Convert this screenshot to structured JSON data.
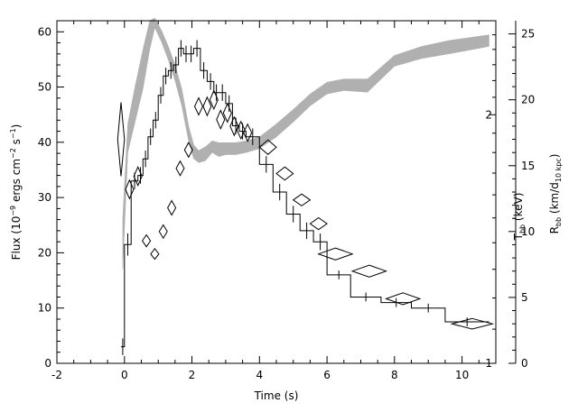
{
  "chart_data": {
    "type": "line",
    "xlabel": "Time (s)",
    "ylabel_left_prefix": "Flux (10",
    "ylabel_left_exp1": "−9",
    "ylabel_left_mid": " ergs cm",
    "ylabel_left_exp2": "−2",
    "ylabel_left_mid2": " s",
    "ylabel_left_exp3": "−1",
    "ylabel_left_suffix": ")",
    "ylabel_t_main": "T",
    "ylabel_t_sub": "bb",
    "ylabel_t_unit": " (keV)",
    "ylabel_r_main": "R",
    "ylabel_r_sub": "bb",
    "ylabel_r_unit_a": " (km/d",
    "ylabel_r_unit_sub": "10 kpc",
    "ylabel_r_unit_b": ")",
    "xlim": [
      -2,
      11
    ],
    "ylim_flux": [
      0,
      62
    ],
    "ylim_radius": [
      0,
      26
    ],
    "t_axis_log_range": [
      1,
      2.6
    ],
    "x_ticks": [
      "-2",
      "0",
      "2",
      "4",
      "6",
      "8",
      "10"
    ],
    "x_tick_values": [
      -2,
      0,
      2,
      4,
      6,
      8,
      10
    ],
    "flux_ticks": [
      "0",
      "10",
      "20",
      "30",
      "40",
      "50",
      "60"
    ],
    "flux_tick_values": [
      0,
      10,
      20,
      30,
      40,
      50,
      60
    ],
    "radius_ticks": [
      "0",
      "5",
      "10",
      "15",
      "20",
      "25"
    ],
    "radius_tick_values": [
      0,
      5,
      10,
      15,
      20,
      25
    ],
    "t_ticks": [
      "1",
      "2"
    ],
    "t_tick_values": [
      1,
      2
    ],
    "series": [
      {
        "kind": "flux_histogram",
        "x_edges": [
          -0.1,
          0.0,
          0.2,
          0.4,
          0.55,
          0.7,
          0.85,
          1.0,
          1.15,
          1.3,
          1.45,
          1.6,
          1.75,
          1.9,
          2.05,
          2.25,
          2.45,
          2.65,
          2.8,
          3.0,
          3.2,
          3.4,
          3.6,
          4.0,
          4.4,
          4.8,
          5.2,
          5.6,
          6.0,
          6.7,
          7.6,
          8.5,
          9.5,
          10.8
        ],
        "values": [
          3,
          21.5,
          33,
          34,
          37,
          41,
          44,
          48.5,
          52,
          53,
          54,
          57,
          56,
          56,
          57,
          53,
          51,
          49,
          49,
          47,
          43,
          42,
          41,
          36,
          31,
          27,
          24,
          22,
          16,
          12,
          11,
          10,
          7.5
        ],
        "errors": [
          1.5,
          2,
          1.5,
          1.5,
          1.5,
          1.5,
          1.5,
          1.5,
          1.5,
          1.5,
          1.5,
          1.5,
          1.5,
          1.5,
          1.5,
          1.5,
          1.5,
          1.5,
          1.5,
          1.5,
          1.5,
          1.5,
          1.5,
          1.5,
          1.5,
          1.5,
          1.5,
          1.5,
          0.8,
          0.8,
          0.8,
          0.8,
          0.8
        ]
      },
      {
        "kind": "temperature_band",
        "x": [
          -0.05,
          0.1,
          0.3,
          0.55,
          0.75,
          0.9,
          1.1,
          1.3,
          1.5,
          1.7,
          1.9,
          2.05,
          2.2,
          2.4,
          2.6,
          2.8,
          3.0,
          3.3,
          3.6,
          4.0,
          4.5,
          5.0,
          5.5,
          6.0,
          6.5,
          7.2,
          8.0,
          8.8,
          9.6,
          10.8
        ],
        "lo": [
          1.3,
          1.8,
          1.95,
          2.15,
          2.4,
          2.55,
          2.45,
          2.33,
          2.2,
          2.05,
          1.86,
          1.77,
          1.75,
          1.76,
          1.8,
          1.78,
          1.79,
          1.79,
          1.8,
          1.82,
          1.88,
          1.96,
          2.05,
          2.12,
          2.14,
          2.13,
          2.29,
          2.34,
          2.37,
          2.42
        ],
        "hi": [
          1.5,
          1.95,
          2.15,
          2.4,
          2.6,
          2.62,
          2.53,
          2.42,
          2.3,
          2.15,
          1.94,
          1.84,
          1.81,
          1.83,
          1.86,
          1.85,
          1.85,
          1.85,
          1.86,
          1.88,
          1.95,
          2.03,
          2.12,
          2.19,
          2.21,
          2.21,
          2.36,
          2.42,
          2.46,
          2.5
        ]
      },
      {
        "kind": "radius_diamonds",
        "x": [
          -0.1,
          0.15,
          0.4,
          0.65,
          0.9,
          1.15,
          1.4,
          1.65,
          1.9,
          2.2,
          2.45,
          2.65,
          2.85,
          3.05,
          3.25,
          3.45,
          3.65,
          4.25,
          4.75,
          5.25,
          5.75,
          6.25,
          7.25,
          8.25,
          10.3
        ],
        "y": [
          17,
          13.2,
          14.2,
          9.3,
          8.3,
          10,
          11.8,
          14.8,
          16.2,
          19.5,
          19.5,
          20,
          18.5,
          19,
          18,
          17.7,
          17.5,
          16.4,
          14.4,
          12.4,
          10.6,
          8.3,
          7,
          4.9,
          3
        ],
        "xerr": [
          0.1,
          0.12,
          0.12,
          0.12,
          0.12,
          0.12,
          0.12,
          0.12,
          0.12,
          0.12,
          0.12,
          0.12,
          0.12,
          0.12,
          0.12,
          0.12,
          0.12,
          0.25,
          0.25,
          0.25,
          0.25,
          0.5,
          0.5,
          0.5,
          0.6
        ],
        "yerr": [
          2.8,
          0.7,
          0.7,
          0.45,
          0.4,
          0.5,
          0.55,
          0.55,
          0.55,
          0.65,
          0.7,
          0.7,
          0.7,
          0.7,
          0.7,
          0.65,
          0.65,
          0.55,
          0.5,
          0.45,
          0.45,
          0.45,
          0.45,
          0.45,
          0.4
        ]
      }
    ],
    "colors": {
      "band": "#b0b0b0",
      "line": "#000000",
      "background": "#ffffff"
    },
    "grid": false,
    "legend": "none"
  }
}
